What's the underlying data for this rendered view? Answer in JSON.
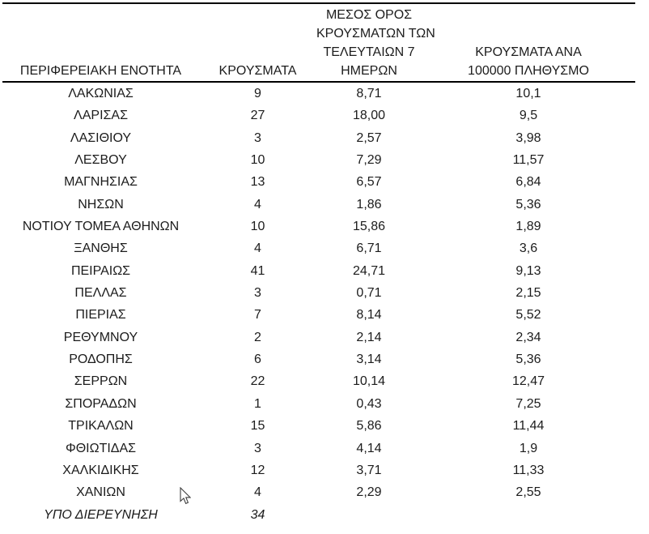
{
  "page": {
    "background": "#ffffff",
    "text_color": "#1c1c1c",
    "rule_color": "#000000"
  },
  "table": {
    "headers": {
      "region": "ΠΕΡΙΦΕΡΕΙΑΚΗ ΕΝΟΤΗΤΑ",
      "cases": "ΚΡΟΥΣΜΑΤΑ",
      "avg_7day": [
        "ΜΕΣΟΣ ΟΡΟΣ",
        "ΚΡΟΥΣΜΑΤΩΝ ΤΩΝ",
        "ΤΕΛΕΥΤΑΙΩΝ 7",
        "ΗΜΕΡΩΝ"
      ],
      "per_100k": [
        "ΚΡΟΥΣΜΑΤΑ ΑΝΑ",
        "100000 ΠΛΗΘΥΣΜΟ"
      ]
    },
    "rows": [
      {
        "region": "ΛΑΚΩΝΙΑΣ",
        "cases": "9",
        "avg_7day": "8,71",
        "per_100k": "10,1"
      },
      {
        "region": "ΛΑΡΙΣΑΣ",
        "cases": "27",
        "avg_7day": "18,00",
        "per_100k": "9,5"
      },
      {
        "region": "ΛΑΣΙΘΙΟΥ",
        "cases": "3",
        "avg_7day": "2,57",
        "per_100k": "3,98"
      },
      {
        "region": "ΛΕΣΒΟΥ",
        "cases": "10",
        "avg_7day": "7,29",
        "per_100k": "11,57"
      },
      {
        "region": "ΜΑΓΝΗΣΙΑΣ",
        "cases": "13",
        "avg_7day": "6,57",
        "per_100k": "6,84"
      },
      {
        "region": "ΝΗΣΩΝ",
        "cases": "4",
        "avg_7day": "1,86",
        "per_100k": "5,36"
      },
      {
        "region": "ΝΟΤΙΟΥ ΤΟΜΕΑ ΑΘΗΝΩΝ",
        "cases": "10",
        "avg_7day": "15,86",
        "per_100k": "1,89"
      },
      {
        "region": "ΞΑΝΘΗΣ",
        "cases": "4",
        "avg_7day": "6,71",
        "per_100k": "3,6"
      },
      {
        "region": "ΠΕΙΡΑΙΩΣ",
        "cases": "41",
        "avg_7day": "24,71",
        "per_100k": "9,13"
      },
      {
        "region": "ΠΕΛΛΑΣ",
        "cases": "3",
        "avg_7day": "0,71",
        "per_100k": "2,15"
      },
      {
        "region": "ΠΙΕΡΙΑΣ",
        "cases": "7",
        "avg_7day": "8,14",
        "per_100k": "5,52"
      },
      {
        "region": "ΡΕΘΥΜΝΟΥ",
        "cases": "2",
        "avg_7day": "2,14",
        "per_100k": "2,34"
      },
      {
        "region": "ΡΟΔΟΠΗΣ",
        "cases": "6",
        "avg_7day": "3,14",
        "per_100k": "5,36"
      },
      {
        "region": "ΣΕΡΡΩΝ",
        "cases": "22",
        "avg_7day": "10,14",
        "per_100k": "12,47"
      },
      {
        "region": "ΣΠΟΡΑΔΩΝ",
        "cases": "1",
        "avg_7day": "0,43",
        "per_100k": "7,25"
      },
      {
        "region": "ΤΡΙΚΑΛΩΝ",
        "cases": "15",
        "avg_7day": "5,86",
        "per_100k": "11,44"
      },
      {
        "region": "ΦΘΙΩΤΙΔΑΣ",
        "cases": "3",
        "avg_7day": "4,14",
        "per_100k": "1,9"
      },
      {
        "region": "ΧΑΛΚΙΔΙΚΗΣ",
        "cases": "12",
        "avg_7day": "3,71",
        "per_100k": "11,33"
      },
      {
        "region": "ΧΑΝΙΩΝ",
        "cases": "4",
        "avg_7day": "2,29",
        "per_100k": "2,55"
      },
      {
        "region": "ΥΠΟ ΔΙΕΡΕΥΝΗΣΗ",
        "cases": "34",
        "avg_7day": "",
        "per_100k": "",
        "italic": true
      }
    ]
  },
  "cursor": {
    "icon": "arrow-pointer"
  }
}
